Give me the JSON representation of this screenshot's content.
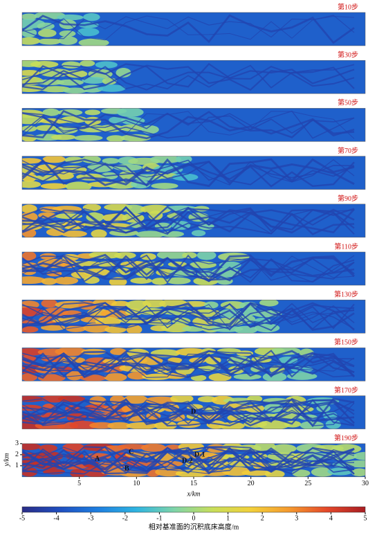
{
  "panels": [
    {
      "label": "第10步"
    },
    {
      "label": "第30步"
    },
    {
      "label": "第50步"
    },
    {
      "label": "第70步"
    },
    {
      "label": "第90步"
    },
    {
      "label": "第110步"
    },
    {
      "label": "第130步"
    },
    {
      "label": "第150步"
    },
    {
      "label": "第170步"
    },
    {
      "label": "第190步"
    }
  ],
  "x_axis": {
    "label": "x/km",
    "lim": [
      0,
      30
    ],
    "ticks": [
      5,
      10,
      15,
      20,
      25,
      30
    ]
  },
  "y_axis": {
    "label": "y/km",
    "lim": [
      0,
      3
    ],
    "ticks": [
      1,
      2,
      3
    ]
  },
  "colorbar": {
    "label": "相对基准面的沉积底床高度/m",
    "lim": [
      -5,
      5
    ],
    "ticks": [
      -5,
      -4,
      -3,
      -2,
      -1,
      0,
      1,
      2,
      3,
      4,
      5
    ],
    "colors": [
      "#2a2c86",
      "#1f4fc0",
      "#1e7fe0",
      "#2fb4e0",
      "#7fd4a8",
      "#c8de5a",
      "#f2d03a",
      "#f59a2e",
      "#e4482a",
      "#a81d22"
    ]
  },
  "annotations": [
    "A",
    "B",
    "C",
    "D",
    "D-1",
    "D-2"
  ]
}
